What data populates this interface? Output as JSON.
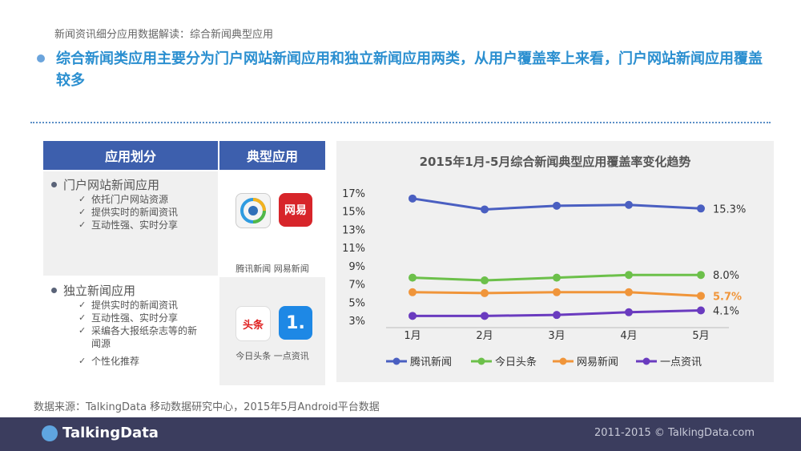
{
  "header": {
    "subtitle": "新闻资讯细分应用数据解读：综合新闻典型应用",
    "headline": "综合新闻类应用主要分为门户网站新闻应用和独立新闻应用两类，从用户覆盖率上来看，门户网站新闻应用覆盖较多"
  },
  "table": {
    "col1": "应用划分",
    "col2": "典型应用",
    "rows": [
      {
        "category": "门户网站新闻应用",
        "features": [
          "依托门户网站资源",
          "提供实时的新闻资讯",
          "互动性强、实时分享"
        ],
        "apps": "腾讯新闻 网易新闻",
        "icon1_text": "",
        "icon2_text": "网易"
      },
      {
        "category": "独立新闻应用",
        "features": [
          "提供实时的新闻资讯",
          "互动性强、实时分享",
          "采编各大报纸杂志等的新闻源",
          "个性化推荐"
        ],
        "apps": "今日头条 一点资讯",
        "icon1_text": "头条",
        "icon2_text": "1."
      }
    ]
  },
  "chart_data": {
    "type": "line",
    "title": "2015年1月-5月综合新闻典型应用覆盖率变化趋势",
    "categories": [
      "1月",
      "2月",
      "3月",
      "4月",
      "5月"
    ],
    "yticks": [
      "17%",
      "15%",
      "13%",
      "11%",
      "9%",
      "7%",
      "5%",
      "3%"
    ],
    "ylim": [
      3,
      17
    ],
    "series": [
      {
        "name": "腾讯新闻",
        "color": "#4a5fc1",
        "values": [
          16.4,
          15.2,
          15.6,
          15.7,
          15.3
        ],
        "end_label": "15.3%",
        "label_color": "#333333"
      },
      {
        "name": "今日头条",
        "color": "#6cc04a",
        "values": [
          7.7,
          7.4,
          7.7,
          8.0,
          8.0
        ],
        "end_label": "8.0%",
        "label_color": "#333333"
      },
      {
        "name": "网易新闻",
        "color": "#f0953a",
        "values": [
          6.1,
          6.0,
          6.1,
          6.1,
          5.7
        ],
        "end_label": "5.7%",
        "label_color": "#f0953a"
      },
      {
        "name": "一点资讯",
        "color": "#6a3bbf",
        "values": [
          3.5,
          3.5,
          3.6,
          3.9,
          4.1
        ],
        "end_label": "4.1%",
        "label_color": "#333333"
      }
    ]
  },
  "footer": {
    "source": "数据来源：TalkingData 移动数据研究中心，2015年5月Android平台数据",
    "logo": "TalkingData",
    "copyright": "2011-2015 © TalkingData.com"
  }
}
